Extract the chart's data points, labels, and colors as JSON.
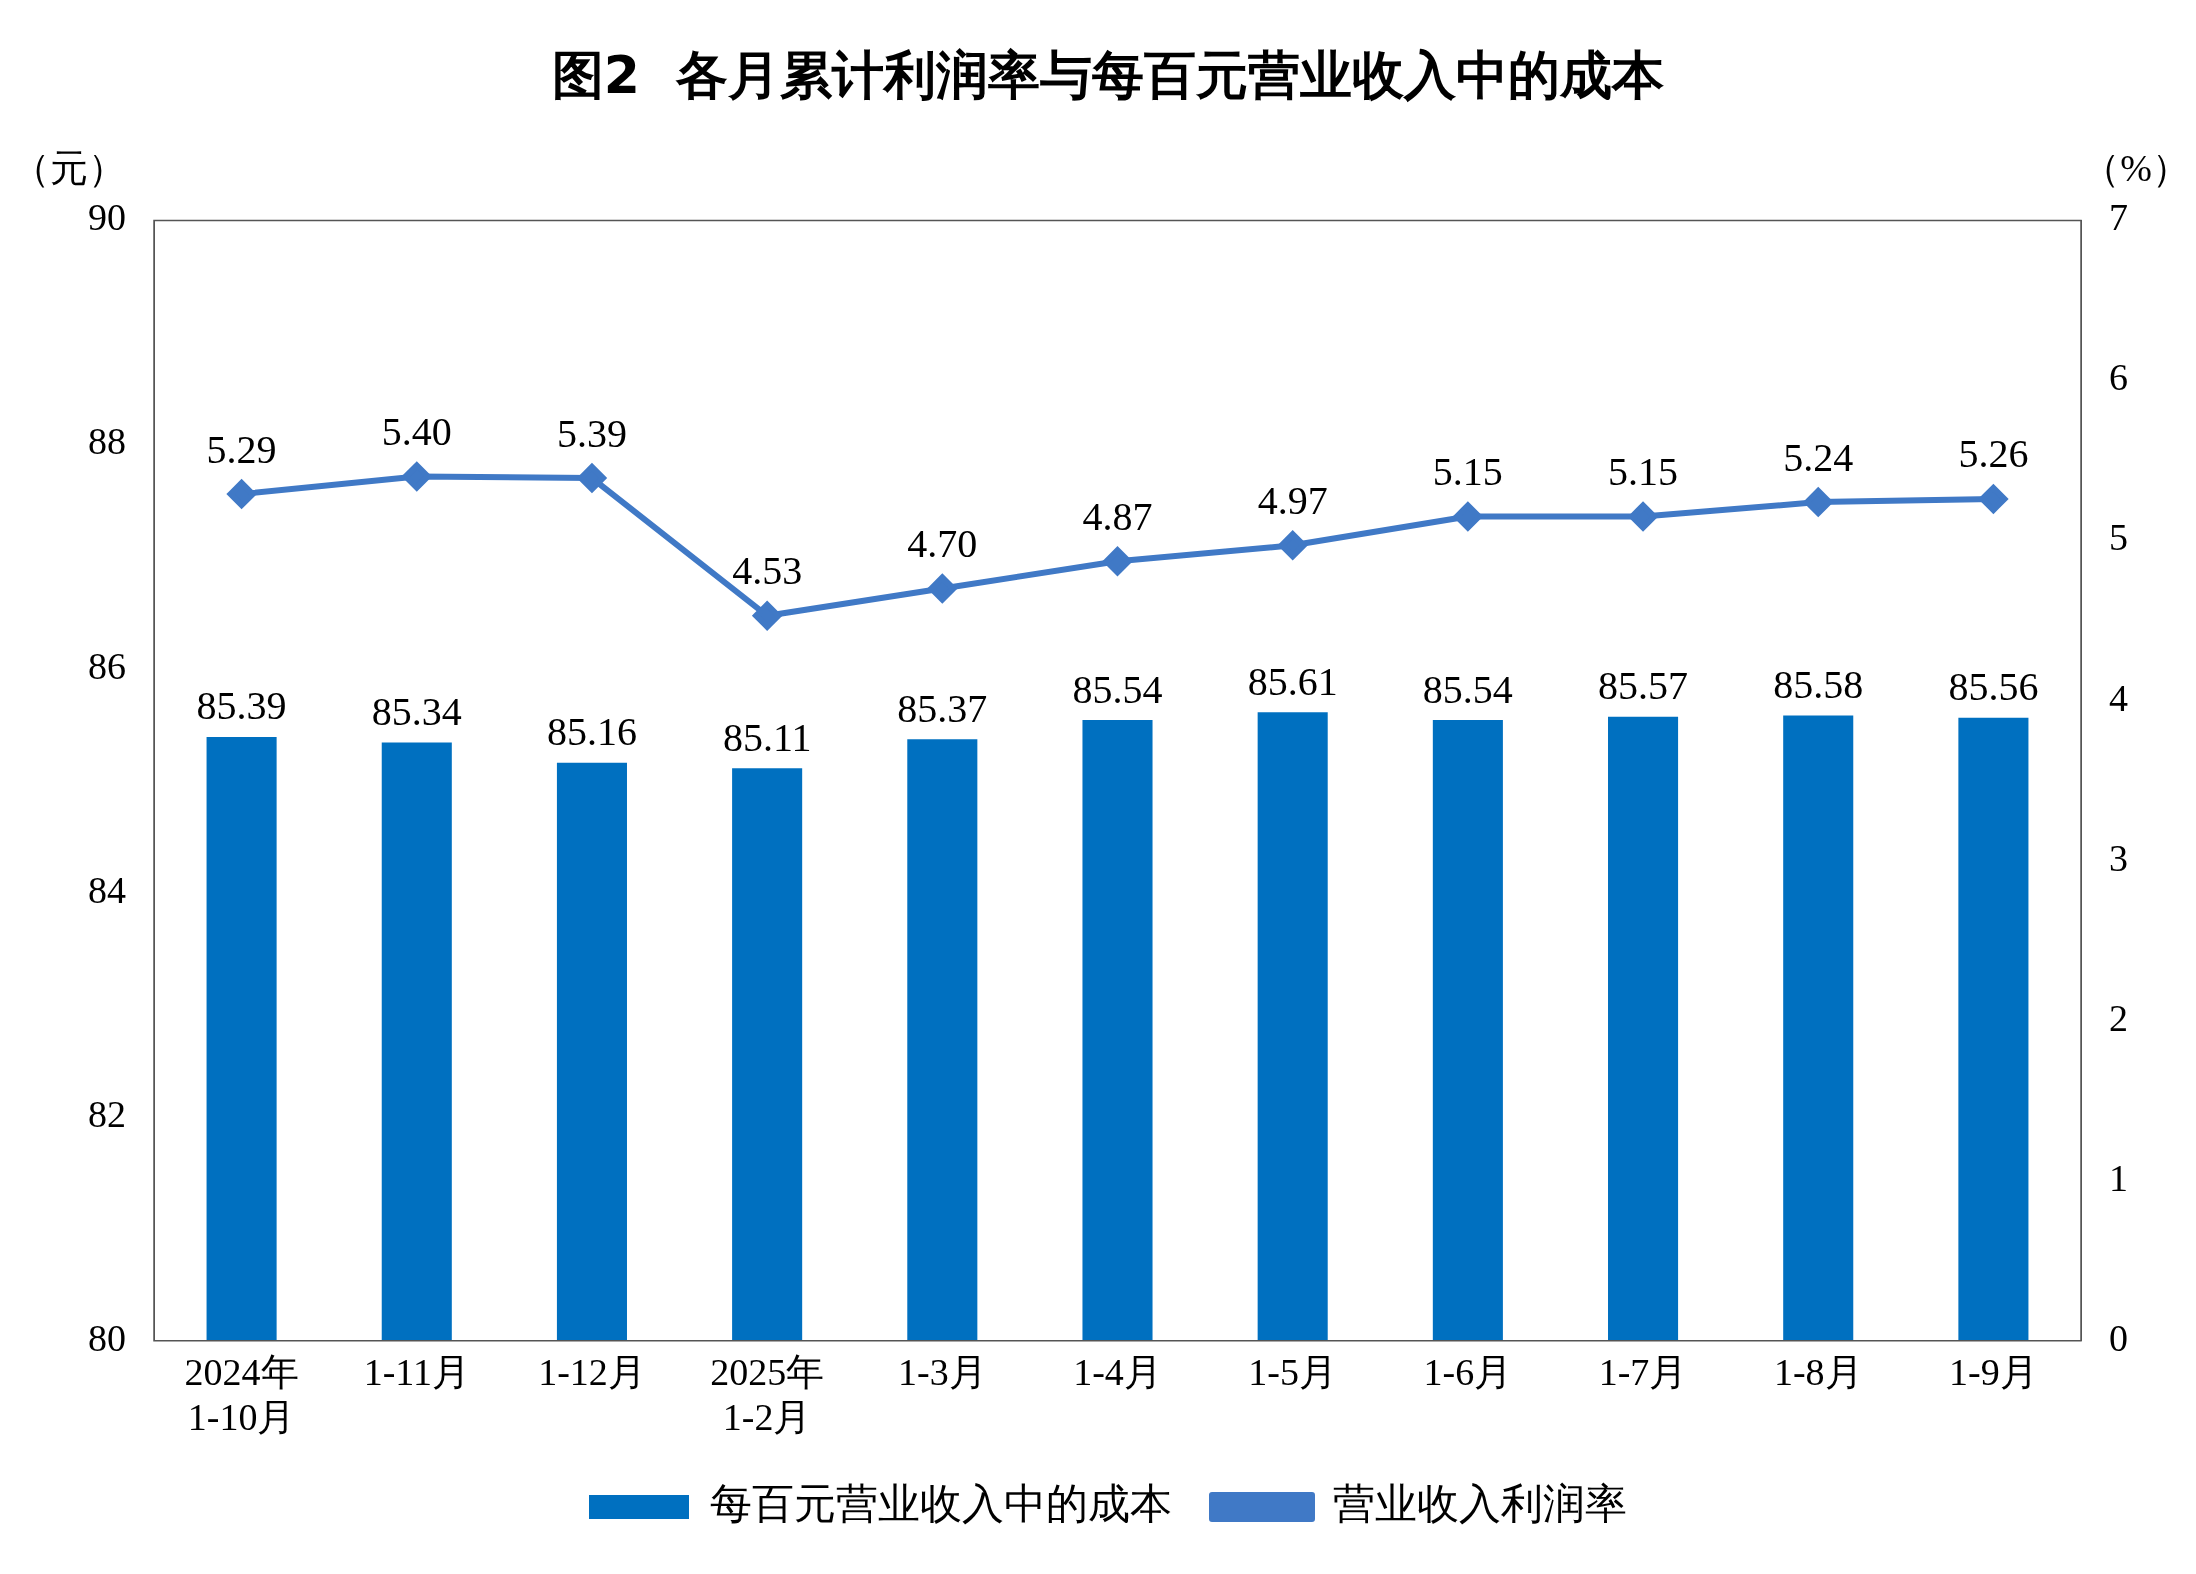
{
  "chart_data": {
    "type": "bar",
    "title": "图2  各月累计利润率与每百元营业收入中的成本",
    "ylabel": "（元）",
    "y2label": "（%）",
    "categories": [
      "2024年\n1-10月",
      "1-11月",
      "1-12月",
      "2025年\n1-2月",
      "1-3月",
      "1-4月",
      "1-5月",
      "1-6月",
      "1-7月",
      "1-8月",
      "1-9月"
    ],
    "series": [
      {
        "name": "每百元营业收入中的成本",
        "color": "#0070c0",
        "values": [
          85.39,
          85.34,
          85.16,
          85.11,
          85.37,
          85.54,
          85.61,
          85.54,
          85.57,
          85.58,
          85.56
        ]
      },
      {
        "name": "营业收入利润率",
        "type": "line",
        "axis": "y2",
        "color": "#4079c6",
        "marker": "diamond",
        "values": [
          5.29,
          5.4,
          5.39,
          4.53,
          4.7,
          4.87,
          4.97,
          5.15,
          5.15,
          5.24,
          5.26
        ],
        "value_labels": [
          "5.29",
          "5.40",
          "5.39",
          "4.53",
          "4.70",
          "4.87",
          "4.97",
          "5.15",
          "5.15",
          "5.24",
          "5.26"
        ]
      }
    ],
    "ylim": [
      80,
      90
    ],
    "yticks": [
      80,
      82,
      84,
      86,
      88,
      90
    ],
    "y2lim": [
      0,
      7
    ],
    "y2ticks": [
      0,
      1,
      2,
      3,
      4,
      5,
      6,
      7
    ],
    "data_labels": true,
    "legend": "bottom",
    "grid": false
  }
}
